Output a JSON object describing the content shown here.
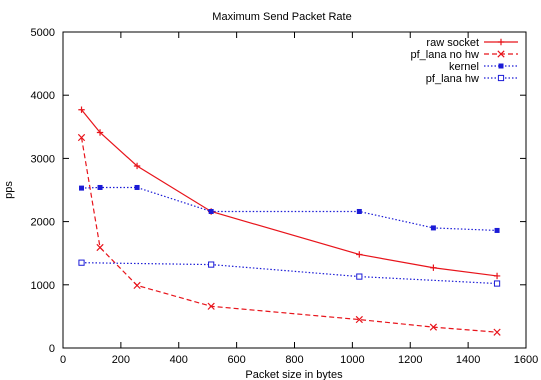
{
  "chart_data": {
    "type": "line",
    "title": "Maximum Send Packet Rate",
    "xlabel": "Packet size in bytes",
    "ylabel": "pps",
    "xlim": [
      0,
      1600
    ],
    "ylim": [
      0,
      5000
    ],
    "xticks": [
      0,
      200,
      400,
      600,
      800,
      1000,
      1200,
      1400,
      1600
    ],
    "yticks": [
      0,
      1000,
      2000,
      3000,
      4000,
      5000
    ],
    "grid": false,
    "legend_position": "top-right",
    "series": [
      {
        "name": "raw socket",
        "color": "#e8141b",
        "line_style": "solid",
        "marker": "plus",
        "x": [
          64,
          128,
          256,
          512,
          1024,
          1280,
          1500
        ],
        "y": [
          3770,
          3410,
          2880,
          2160,
          1480,
          1270,
          1140
        ]
      },
      {
        "name": "pf_lana no hw",
        "color": "#e8141b",
        "line_style": "dashed",
        "marker": "cross",
        "x": [
          64,
          128,
          256,
          512,
          1024,
          1280,
          1500
        ],
        "y": [
          3330,
          1590,
          990,
          660,
          450,
          330,
          250
        ]
      },
      {
        "name": "kernel",
        "color": "#1b1bd6",
        "line_style": "dotted",
        "marker": "filled-square",
        "x": [
          64,
          128,
          256,
          512,
          1024,
          1280,
          1500
        ],
        "y": [
          2530,
          2540,
          2540,
          2160,
          2160,
          1900,
          1860
        ]
      },
      {
        "name": "pf_lana hw",
        "color": "#1b1bd6",
        "line_style": "dotted",
        "marker": "open-square",
        "x": [
          64,
          512,
          1024,
          1500
        ],
        "y": [
          1350,
          1320,
          1130,
          1020
        ]
      }
    ]
  }
}
